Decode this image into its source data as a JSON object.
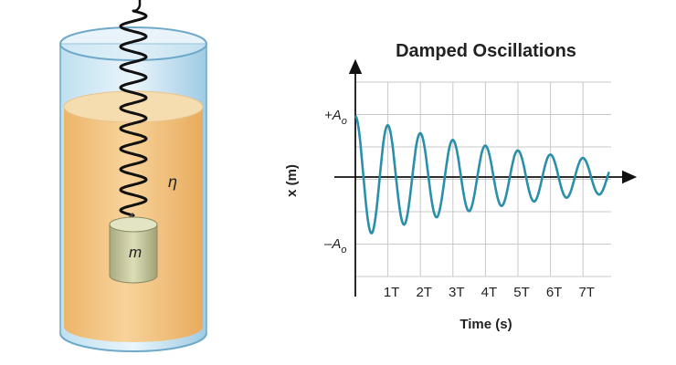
{
  "apparatus": {
    "mass_label": "m",
    "damping_label": "η"
  },
  "chart_data": {
    "type": "line",
    "title": "Damped Oscillations",
    "xlabel": "Time (s)",
    "ylabel": "x (m)",
    "y_tick_labels": [
      "+A",
      "–A"
    ],
    "y_tick_subscript": "o",
    "x_tick_labels": [
      "1T",
      "2T",
      "3T",
      "4T",
      "5T",
      "6T",
      "7T"
    ],
    "x_ticks_period_units": [
      1,
      2,
      3,
      4,
      5,
      6,
      7
    ],
    "xlim_period_units": [
      0,
      7.8
    ],
    "ylim_amplitude_units": [
      -1.3,
      1.3
    ],
    "grid": true,
    "series": [
      {
        "color": "#2a8fa8",
        "equation": "x(t) = A_o · exp(-0.167 t) · cos(2π t / T)",
        "decay_per_period": 0.167,
        "start_amplitude_units": 1.0
      }
    ]
  },
  "colors": {
    "fluid": "#f3c98b",
    "fluid_top": "#f7dcae",
    "glass_edge": "#7fb8d8",
    "glass_top": "#c9e3f2",
    "mass_body": "#cfd0a8",
    "curve": "#2a8fa8",
    "grid": "#c8c8c8"
  },
  "icons": {
    "spring": "spring-coil-icon",
    "mass": "mass-cylinder-icon"
  }
}
